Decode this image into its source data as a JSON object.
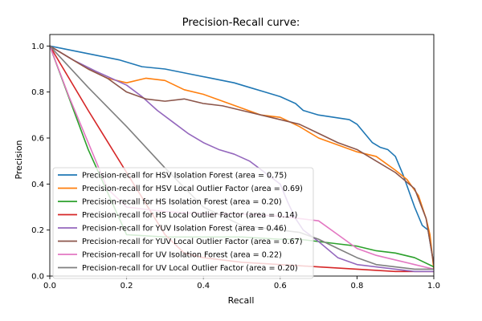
{
  "chart_data": {
    "type": "line",
    "title": "Precision-Recall curve:",
    "xlabel": "Recall",
    "ylabel": "Precision",
    "xlim": [
      0.0,
      1.0
    ],
    "ylim": [
      0.0,
      1.05
    ],
    "xticks": [
      0.0,
      0.2,
      0.4,
      0.6,
      0.8,
      1.0
    ],
    "yticks": [
      0.0,
      0.2,
      0.4,
      0.6,
      0.8,
      1.0
    ],
    "tick_labels_x": [
      "0.0",
      "0.2",
      "0.4",
      "0.6",
      "0.8",
      "1.0"
    ],
    "tick_labels_y": [
      "0.0",
      "0.2",
      "0.4",
      "0.6",
      "0.8",
      "1.0"
    ],
    "grid": false,
    "legend_placement": "lower-left",
    "series": [
      {
        "name": "Precision-recall for HSV Isolation Forest (area = 0.75)",
        "color": "#1f77b4",
        "x": [
          0,
          0.06,
          0.12,
          0.18,
          0.24,
          0.3,
          0.36,
          0.42,
          0.48,
          0.52,
          0.56,
          0.6,
          0.64,
          0.66,
          0.7,
          0.74,
          0.78,
          0.8,
          0.82,
          0.84,
          0.86,
          0.88,
          0.9,
          0.92,
          0.95,
          0.97,
          0.985,
          1.0
        ],
        "y": [
          1.0,
          0.98,
          0.96,
          0.94,
          0.91,
          0.9,
          0.88,
          0.86,
          0.84,
          0.82,
          0.8,
          0.78,
          0.75,
          0.72,
          0.7,
          0.69,
          0.68,
          0.66,
          0.62,
          0.58,
          0.56,
          0.55,
          0.52,
          0.44,
          0.3,
          0.22,
          0.2,
          0.05
        ]
      },
      {
        "name": "Precision-recall for HSV Local Outlier Factor (area = 0.69)",
        "color": "#ff7f0e",
        "x": [
          0,
          0.05,
          0.1,
          0.15,
          0.2,
          0.25,
          0.3,
          0.35,
          0.4,
          0.45,
          0.5,
          0.55,
          0.6,
          0.65,
          0.7,
          0.75,
          0.8,
          0.85,
          0.9,
          0.93,
          0.96,
          0.98,
          0.99,
          1.0
        ],
        "y": [
          1.0,
          0.95,
          0.9,
          0.86,
          0.84,
          0.86,
          0.85,
          0.81,
          0.79,
          0.76,
          0.73,
          0.7,
          0.69,
          0.65,
          0.6,
          0.57,
          0.54,
          0.52,
          0.46,
          0.42,
          0.35,
          0.25,
          0.18,
          0.03
        ]
      },
      {
        "name": "Precision-recall for HS Isolation Forest (area = 0.20)",
        "color": "#2ca02c",
        "x": [
          0,
          0.1,
          0.2,
          0.3,
          0.4,
          0.5,
          0.6,
          0.65,
          0.7,
          0.75,
          0.8,
          0.85,
          0.9,
          0.95,
          1.0
        ],
        "y": [
          1.0,
          0.55,
          0.18,
          0.17,
          0.17,
          0.17,
          0.16,
          0.16,
          0.15,
          0.14,
          0.13,
          0.11,
          0.1,
          0.08,
          0.04
        ]
      },
      {
        "name": "Precision-recall for HS Local Outlier Factor (area = 0.14)",
        "color": "#d62728",
        "x": [
          0,
          0.1,
          0.2,
          0.3,
          0.35,
          0.4,
          0.5,
          0.6,
          0.7,
          0.8,
          0.9,
          1.0
        ],
        "y": [
          1.0,
          0.72,
          0.45,
          0.18,
          0.1,
          0.08,
          0.06,
          0.05,
          0.04,
          0.03,
          0.02,
          0.02
        ]
      },
      {
        "name": "Precision-recall for YUV Isolation Forest (area = 0.46)",
        "color": "#9467bd",
        "x": [
          0,
          0.06,
          0.12,
          0.16,
          0.2,
          0.24,
          0.28,
          0.32,
          0.36,
          0.4,
          0.44,
          0.48,
          0.52,
          0.56,
          0.6,
          0.62,
          0.64,
          0.66,
          0.7,
          0.75,
          0.8,
          0.85,
          0.9,
          0.95,
          1.0
        ],
        "y": [
          1.0,
          0.94,
          0.89,
          0.86,
          0.83,
          0.78,
          0.72,
          0.67,
          0.62,
          0.58,
          0.55,
          0.53,
          0.5,
          0.45,
          0.4,
          0.32,
          0.25,
          0.2,
          0.15,
          0.08,
          0.05,
          0.04,
          0.03,
          0.02,
          0.02
        ]
      },
      {
        "name": "Precision-recall for YUV Local Outlier Factor (area = 0.67)",
        "color": "#8c564b",
        "x": [
          0,
          0.05,
          0.1,
          0.15,
          0.2,
          0.25,
          0.3,
          0.35,
          0.4,
          0.45,
          0.5,
          0.55,
          0.6,
          0.65,
          0.7,
          0.75,
          0.8,
          0.85,
          0.9,
          0.95,
          0.98,
          1.0
        ],
        "y": [
          1.0,
          0.95,
          0.9,
          0.86,
          0.8,
          0.77,
          0.76,
          0.77,
          0.75,
          0.74,
          0.72,
          0.7,
          0.68,
          0.66,
          0.62,
          0.58,
          0.55,
          0.5,
          0.45,
          0.38,
          0.25,
          0.05
        ]
      },
      {
        "name": "Precision-recall for UV Isolation Forest (area = 0.22)",
        "color": "#e377c2",
        "x": [
          0,
          0.05,
          0.1,
          0.15,
          0.2,
          0.25,
          0.3,
          0.4,
          0.5,
          0.6,
          0.65,
          0.7,
          0.75,
          0.8,
          0.85,
          0.9,
          0.95,
          1.0
        ],
        "y": [
          1.0,
          0.78,
          0.58,
          0.38,
          0.3,
          0.29,
          0.28,
          0.27,
          0.27,
          0.26,
          0.25,
          0.24,
          0.18,
          0.12,
          0.09,
          0.07,
          0.05,
          0.03
        ]
      },
      {
        "name": "Precision-recall for UV Local Outlier Factor (area = 0.20)",
        "color": "#7f7f7f",
        "x": [
          0,
          0.1,
          0.2,
          0.3,
          0.4,
          0.5,
          0.6,
          0.65,
          0.7,
          0.75,
          0.8,
          0.85,
          0.9,
          0.95,
          1.0
        ],
        "y": [
          1.0,
          0.82,
          0.65,
          0.47,
          0.3,
          0.22,
          0.2,
          0.19,
          0.16,
          0.12,
          0.08,
          0.05,
          0.04,
          0.03,
          0.03
        ]
      }
    ]
  }
}
